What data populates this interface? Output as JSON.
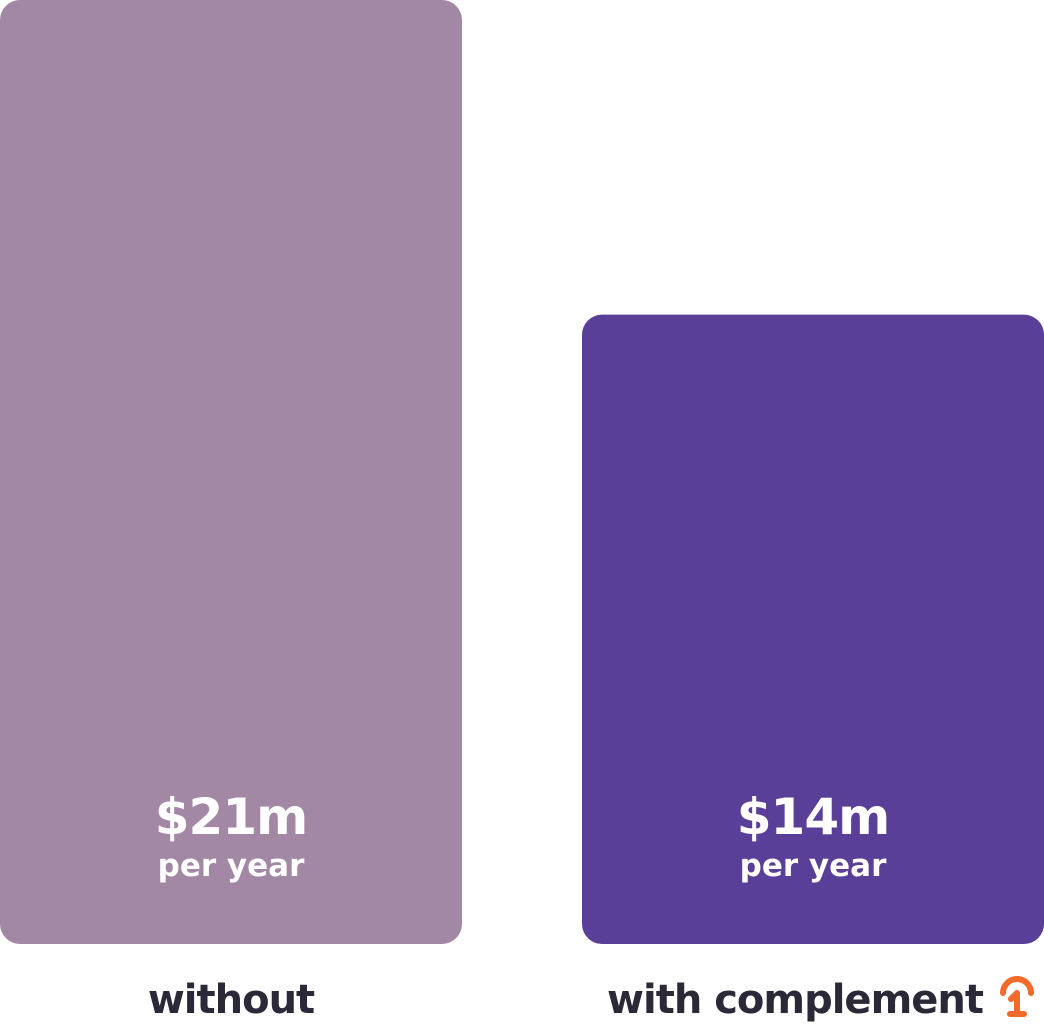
{
  "chart_data": {
    "type": "bar",
    "categories": [
      "without",
      "with complement"
    ],
    "values": [
      21,
      14
    ],
    "value_labels": [
      "$21m",
      "$14m"
    ],
    "unit_label": "per year",
    "colors": [
      "#a388a6",
      "#5a3f98"
    ]
  }
}
